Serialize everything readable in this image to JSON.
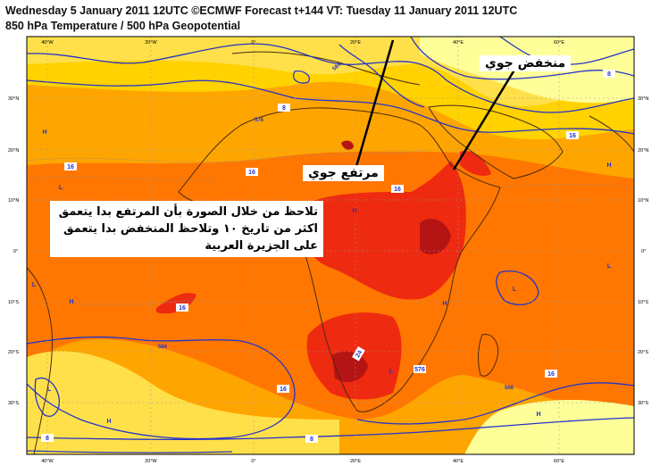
{
  "header": {
    "title_line1": "Wednesday 5 January 2011 12UTC ©ECMWF Forecast t+144 VT: Tuesday 11 January 2011 12UTC",
    "title_line2": "850 hPa Temperature / 500 hPa Geopotential"
  },
  "map": {
    "lon_labels": [
      "40°W",
      "20°W",
      "0°",
      "20°E",
      "40°E",
      "60°E"
    ],
    "lat_labels": [
      "30°N",
      "20°N",
      "10°N",
      "0°",
      "10°S",
      "20°S",
      "30°S"
    ],
    "contour_labels": [
      "584",
      "576",
      "568",
      "584",
      "8",
      "16",
      "8",
      "16",
      "16",
      "16",
      "16",
      "16",
      "16",
      "8",
      "8",
      "24",
      "576"
    ],
    "pressure_markers": [
      "H",
      "H",
      "H",
      "H",
      "H",
      "H",
      "H",
      "L",
      "L",
      "L",
      "L",
      "L",
      "L"
    ],
    "colors": {
      "temp_cold": "#ffff9a",
      "temp_cool": "#ffd200",
      "temp_mild": "#ffa500",
      "temp_warm": "#ff7700",
      "temp_hot": "#ee2a10",
      "temp_very_hot": "#b51414",
      "geopotential_contour": "#2533c8",
      "land_outline": "#4a2a10"
    }
  },
  "annotations": {
    "low_label": "منخفض جوي",
    "high_label": "مرتفع جوي",
    "note_lines": [
      "تلاحظ من خلال الصورة بأن المرتفع بدا يتعمق",
      "اكثر من تاريخ ١٠ وتلاحظ المنخفض بدا يتعمق",
      "على الجزيرة العربية"
    ]
  }
}
